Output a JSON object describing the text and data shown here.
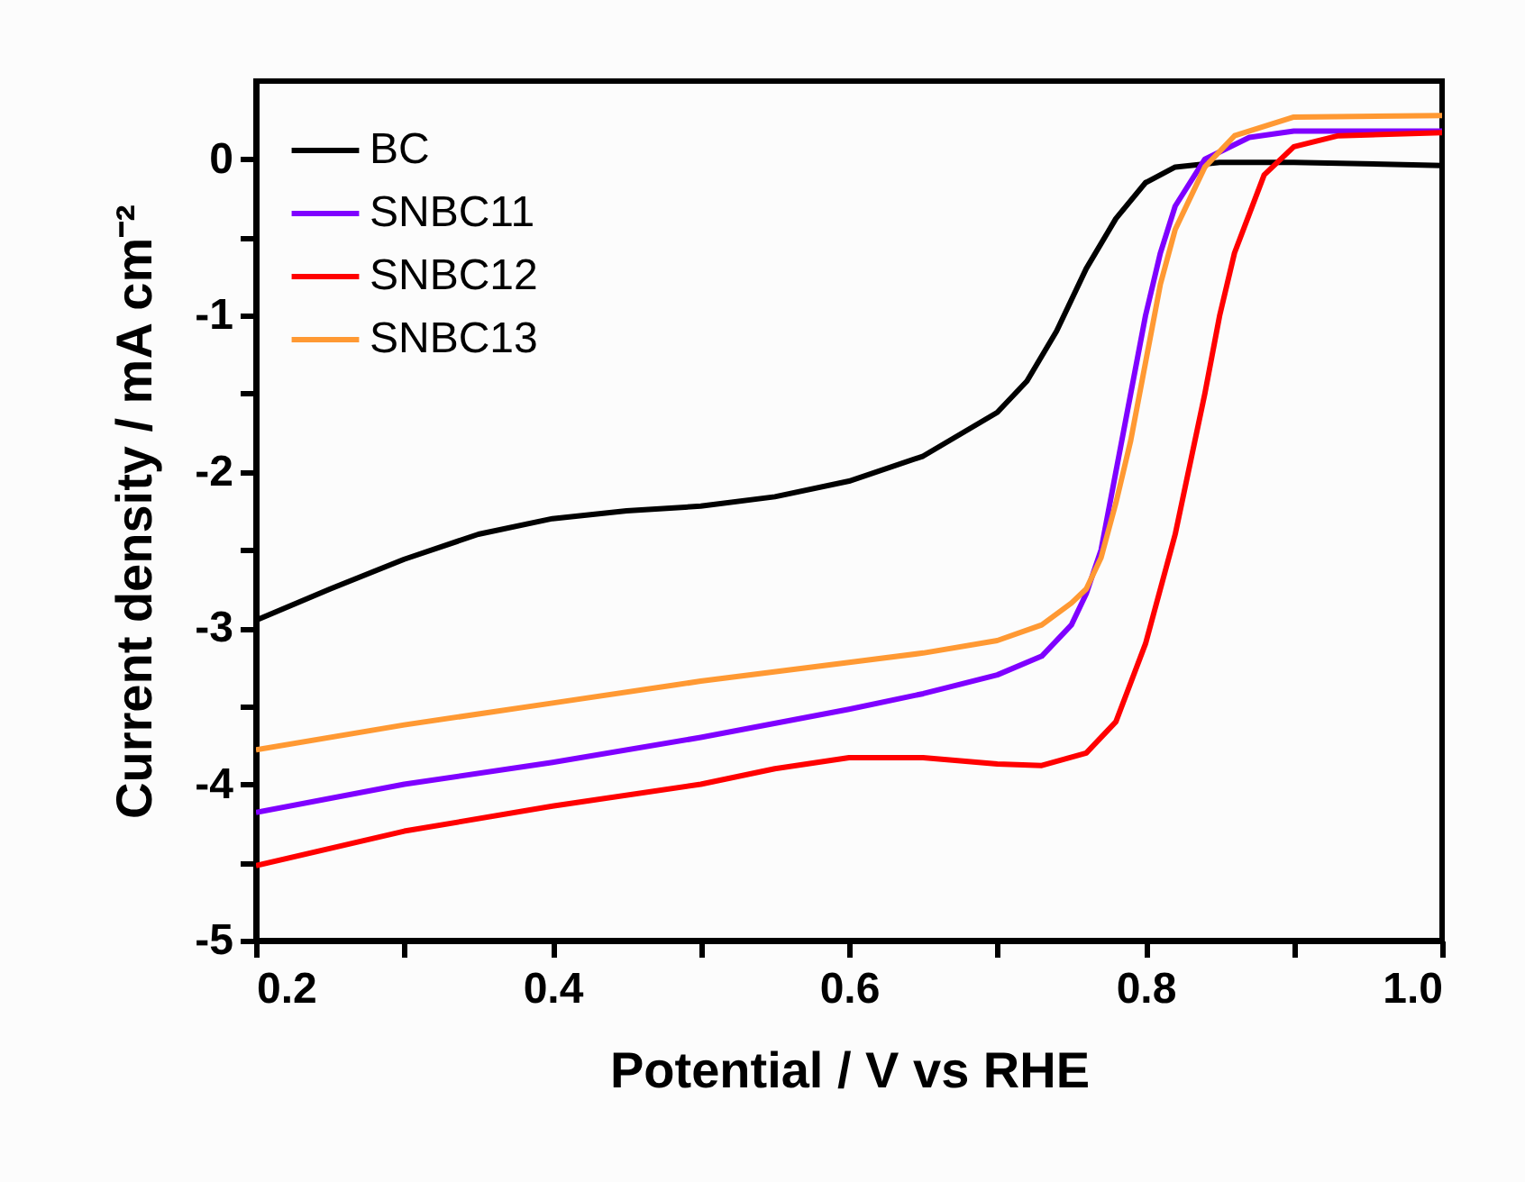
{
  "chart_data": {
    "type": "line",
    "xlabel": "Potential / V vs RHE",
    "ylabel": "Current density / mA cm⁻²",
    "xlim": [
      0.2,
      1.0
    ],
    "xticks": [
      0.2,
      {
        "value": 0.3,
        "label": null
      },
      0.4,
      {
        "value": 0.5,
        "label": null
      },
      0.6,
      {
        "value": 0.7,
        "label": null
      },
      0.8,
      {
        "value": 0.9,
        "label": null
      },
      {
        "value": 1,
        "label": "1.0"
      }
    ],
    "ylim": [
      -5,
      0.5
    ],
    "yticks": [
      -5,
      {
        "value": -4.5,
        "label": null
      },
      -4,
      {
        "value": -3.5,
        "label": null
      },
      -3,
      {
        "value": -2.5,
        "label": null
      },
      -2,
      {
        "value": -1.5,
        "label": null
      },
      -1,
      {
        "value": -0.5,
        "label": null
      },
      0
    ],
    "legend": "top left",
    "grid": false,
    "line_style": "solid",
    "series": [
      {
        "name": "BC",
        "color": "#000000",
        "x": [
          0.2,
          0.25,
          0.3,
          0.35,
          0.4,
          0.45,
          0.5,
          0.55,
          0.6,
          0.65,
          0.7,
          0.72,
          0.74,
          0.76,
          0.78,
          0.8,
          0.82,
          0.85,
          0.9,
          1.0
        ],
        "values": [
          -2.95,
          -2.75,
          -2.56,
          -2.4,
          -2.3,
          -2.25,
          -2.22,
          -2.16,
          -2.06,
          -1.9,
          -1.62,
          -1.42,
          -1.1,
          -0.7,
          -0.38,
          -0.15,
          -0.05,
          -0.02,
          -0.02,
          -0.04
        ]
      },
      {
        "name": "SNBC11",
        "color": "#7f00ff",
        "x": [
          0.2,
          0.3,
          0.4,
          0.5,
          0.6,
          0.65,
          0.7,
          0.73,
          0.75,
          0.76,
          0.77,
          0.78,
          0.79,
          0.8,
          0.81,
          0.82,
          0.84,
          0.87,
          0.9,
          1.0
        ],
        "values": [
          -4.18,
          -4.0,
          -3.86,
          -3.7,
          -3.52,
          -3.42,
          -3.3,
          -3.18,
          -2.98,
          -2.78,
          -2.5,
          -2.0,
          -1.5,
          -1.0,
          -0.6,
          -0.3,
          0.0,
          0.14,
          0.18,
          0.18
        ]
      },
      {
        "name": "SNBC12",
        "color": "#ff0000",
        "x": [
          0.2,
          0.3,
          0.4,
          0.5,
          0.55,
          0.6,
          0.65,
          0.7,
          0.73,
          0.76,
          0.78,
          0.8,
          0.82,
          0.84,
          0.85,
          0.86,
          0.88,
          0.9,
          0.93,
          1.0
        ],
        "values": [
          -4.52,
          -4.3,
          -4.14,
          -4.0,
          -3.9,
          -3.83,
          -3.83,
          -3.87,
          -3.88,
          -3.8,
          -3.6,
          -3.1,
          -2.4,
          -1.5,
          -1.0,
          -0.6,
          -0.1,
          0.08,
          0.15,
          0.17
        ]
      },
      {
        "name": "SNBC13",
        "color": "#ff9933",
        "x": [
          0.2,
          0.3,
          0.4,
          0.5,
          0.6,
          0.65,
          0.7,
          0.73,
          0.75,
          0.76,
          0.77,
          0.78,
          0.79,
          0.8,
          0.81,
          0.82,
          0.84,
          0.86,
          0.9,
          1.0
        ],
        "values": [
          -3.78,
          -3.62,
          -3.48,
          -3.34,
          -3.22,
          -3.16,
          -3.08,
          -2.98,
          -2.84,
          -2.75,
          -2.55,
          -2.2,
          -1.8,
          -1.3,
          -0.8,
          -0.45,
          -0.05,
          0.15,
          0.27,
          0.28
        ]
      }
    ]
  }
}
